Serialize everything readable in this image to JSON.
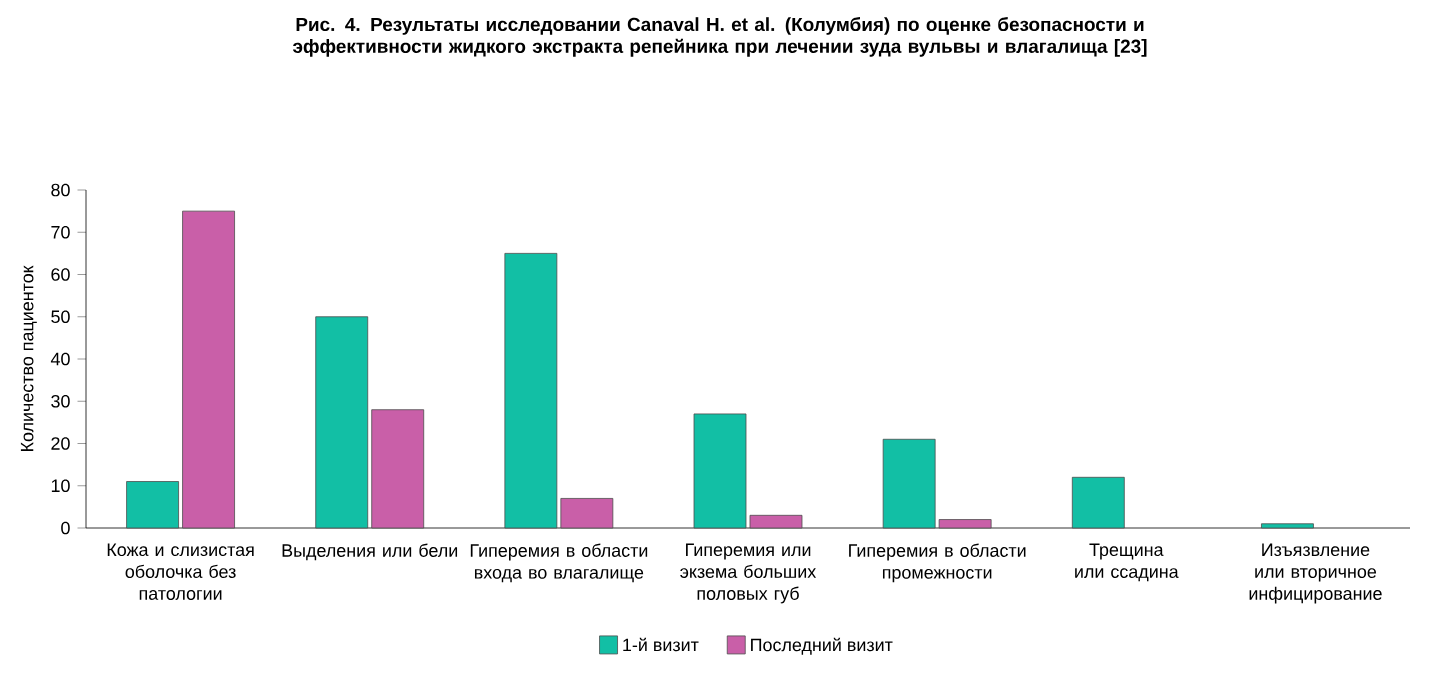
{
  "chart_data": {
    "type": "bar",
    "title": "Рис. 4. Результаты исследовании Canaval H. et al. (Колумбия) по оценке безопасности и эффективности жидкого экстракта репейника при лечении зуда вульвы и влагалища [23]",
    "ylabel": "Количество пациенток",
    "categories": [
      "Кожа и слизистая оболочка без патологии",
      "Выделения или бели",
      "Гиперемия в области входа во влагалище",
      "Гиперемия или экзема больших половых губ",
      "Гиперемия в области промежности",
      "Трещина или ссадина",
      "Изъязвление или вторичное инфицирование"
    ],
    "series": [
      {
        "name": "1-й визит",
        "color": "#12bfa5",
        "values": [
          11,
          50,
          65,
          27,
          21,
          12,
          1
        ]
      },
      {
        "name": "Последний визит",
        "color": "#c95fa8",
        "values": [
          75,
          28,
          7,
          3,
          2,
          null,
          null
        ]
      }
    ],
    "ylim": [
      0,
      80
    ],
    "yticks": [
      0,
      10,
      20,
      30,
      40,
      50,
      60,
      70,
      80
    ],
    "grid": false,
    "legend": "bottom"
  }
}
